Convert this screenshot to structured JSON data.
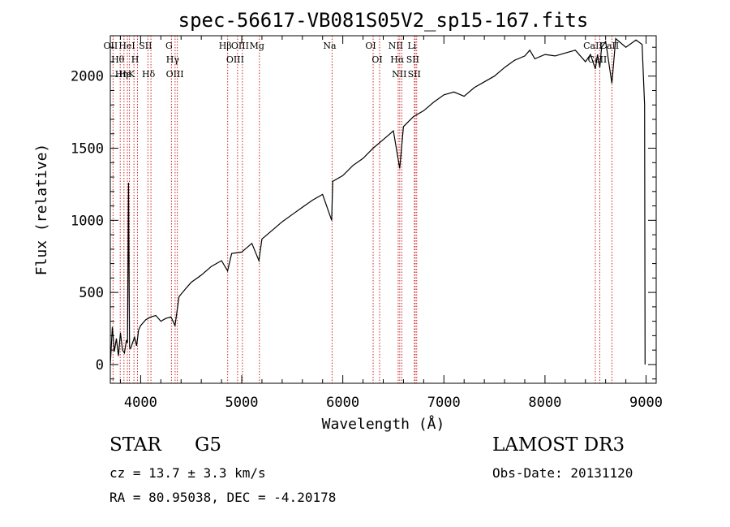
{
  "chart_data": {
    "type": "line",
    "title": "spec-56617-VB081S05V2_sp15-167.fits",
    "xlabel": "Wavelength (Å)",
    "ylabel": "Flux (relative)",
    "xlim": [
      3700,
      9100
    ],
    "ylim": [
      -130,
      2280
    ],
    "x_ticks": [
      4000,
      5000,
      6000,
      7000,
      8000,
      9000
    ],
    "y_ticks": [
      0,
      500,
      1000,
      1500,
      2000
    ],
    "grid": false,
    "series": [
      {
        "name": "flux",
        "x": [
          3700,
          3720,
          3740,
          3760,
          3780,
          3800,
          3820,
          3840,
          3860,
          3870,
          3880,
          3890,
          3900,
          3920,
          3940,
          3960,
          3980,
          4000,
          4050,
          4100,
          4150,
          4200,
          4250,
          4300,
          4340,
          4380,
          4450,
          4500,
          4600,
          4700,
          4800,
          4860,
          4900,
          5000,
          5100,
          5170,
          5200,
          5300,
          5400,
          5500,
          5600,
          5700,
          5800,
          5890,
          5900,
          6000,
          6100,
          6200,
          6300,
          6400,
          6500,
          6563,
          6600,
          6700,
          6800,
          6900,
          7000,
          7100,
          7200,
          7300,
          7400,
          7500,
          7600,
          7700,
          7800,
          7850,
          7900,
          8000,
          8100,
          8200,
          8300,
          8400,
          8450,
          8498,
          8520,
          8542,
          8560,
          8600,
          8662,
          8700,
          8800,
          8900,
          8960,
          8985,
          8990
        ],
        "y": [
          0,
          260,
          90,
          180,
          60,
          220,
          100,
          80,
          170,
          150,
          1260,
          120,
          110,
          150,
          190,
          130,
          240,
          270,
          310,
          330,
          340,
          300,
          320,
          330,
          270,
          470,
          530,
          570,
          620,
          680,
          720,
          650,
          770,
          780,
          840,
          720,
          870,
          930,
          990,
          1040,
          1090,
          1140,
          1180,
          1000,
          1270,
          1310,
          1380,
          1430,
          1500,
          1560,
          1620,
          1360,
          1650,
          1720,
          1760,
          1820,
          1870,
          1890,
          1860,
          1920,
          1960,
          2000,
          2060,
          2110,
          2140,
          2180,
          2120,
          2150,
          2140,
          2160,
          2180,
          2100,
          2150,
          2050,
          2150,
          2060,
          2200,
          2240,
          1950,
          2260,
          2200,
          2250,
          2220,
          1800,
          0
        ]
      }
    ],
    "lines": [
      {
        "wl": 3727,
        "label": "OII"
      },
      {
        "wl": 3798,
        "label": "Hθ"
      },
      {
        "wl": 3835,
        "label": "Hη"
      },
      {
        "wl": 3869,
        "label": "Hε"
      },
      {
        "wl": 3889,
        "label": "HeI"
      },
      {
        "wl": 3934,
        "label": "K"
      },
      {
        "wl": 3969,
        "label": "H"
      },
      {
        "wl": 4072,
        "label": "SII"
      },
      {
        "wl": 4102,
        "label": "Hδ"
      },
      {
        "wl": 4305,
        "label": "G"
      },
      {
        "wl": 4341,
        "label": "Hγ"
      },
      {
        "wl": 4363,
        "label": "OIII"
      },
      {
        "wl": 4861,
        "label": "Hβ"
      },
      {
        "wl": 4959,
        "label": "OIII"
      },
      {
        "wl": 5007,
        "label": "OIII"
      },
      {
        "wl": 5175,
        "label": "Mg"
      },
      {
        "wl": 5894,
        "label": "Na"
      },
      {
        "wl": 6300,
        "label": "OI"
      },
      {
        "wl": 6364,
        "label": "OI"
      },
      {
        "wl": 6548,
        "label": "NII"
      },
      {
        "wl": 6563,
        "label": "Hα"
      },
      {
        "wl": 6583,
        "label": "NII"
      },
      {
        "wl": 6708,
        "label": "Li"
      },
      {
        "wl": 6716,
        "label": "SII"
      },
      {
        "wl": 6731,
        "label": "SII"
      },
      {
        "wl": 8498,
        "label": "CaII"
      },
      {
        "wl": 8542,
        "label": "CaII"
      },
      {
        "wl": 8662,
        "label": "CaII"
      }
    ]
  },
  "info": {
    "class": "STAR",
    "subclass": "G5",
    "survey": "LAMOST DR3",
    "redshift": "cz =  13.7 ± 3.3 km/s",
    "obs_date": "Obs-Date: 20131120",
    "coords": "RA =   80.95038, DEC =   -4.20178"
  }
}
